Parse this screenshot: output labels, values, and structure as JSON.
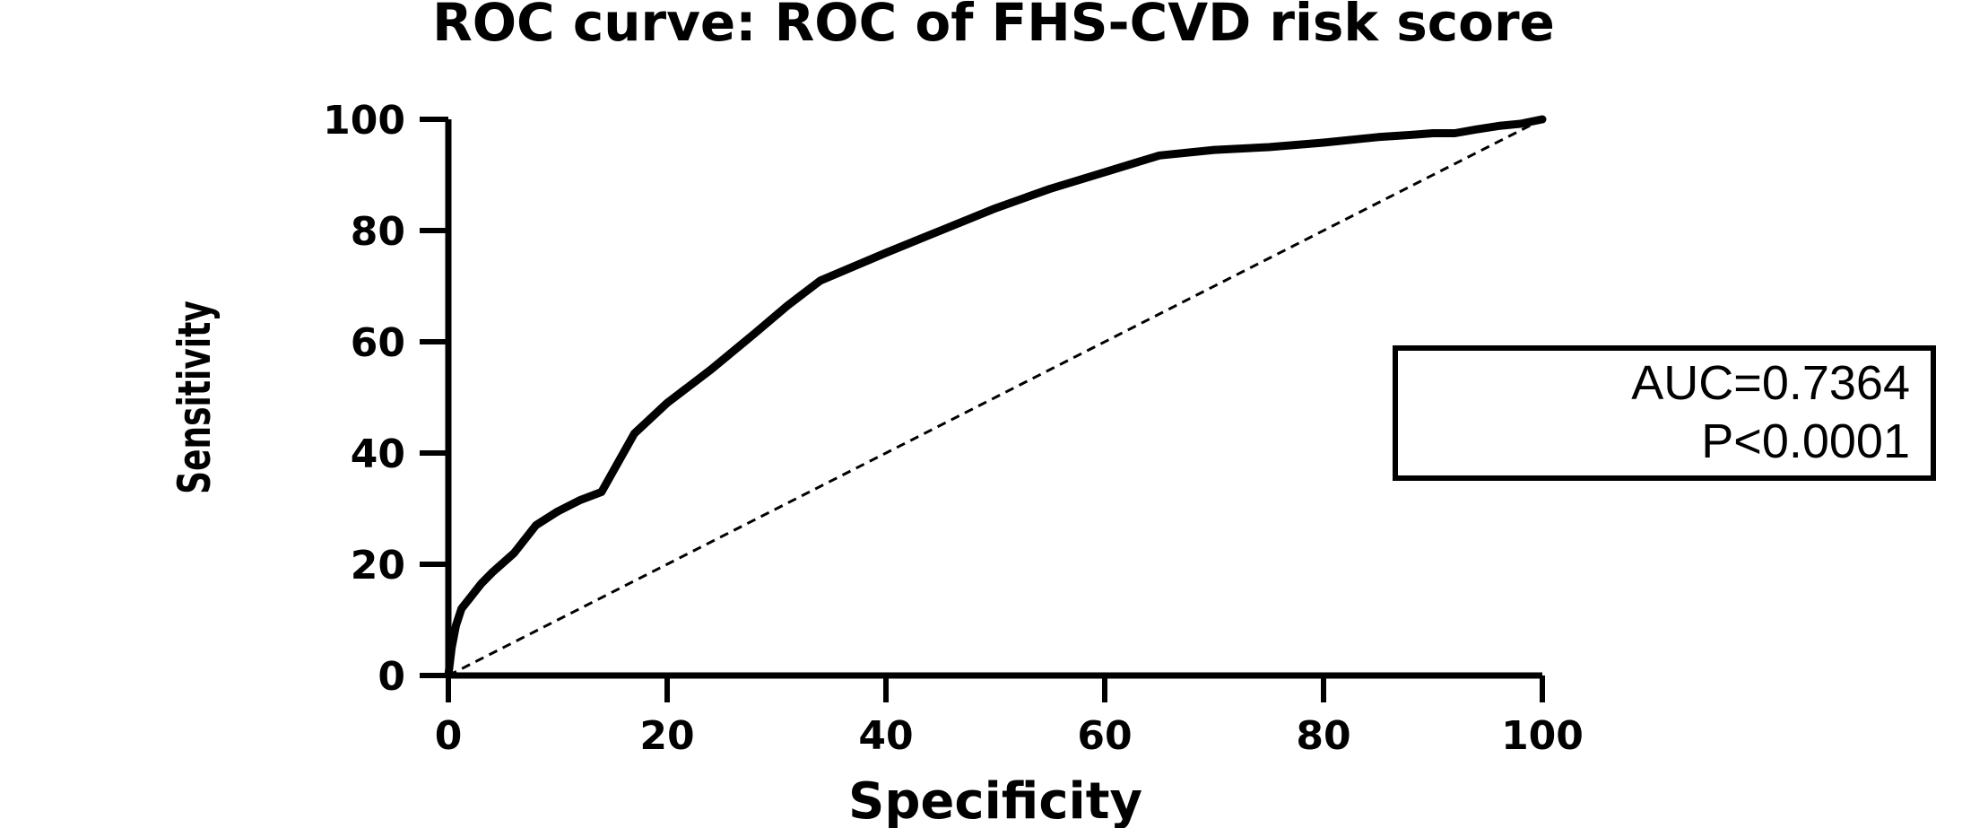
{
  "chart_data": {
    "type": "line",
    "title": "ROC curve: ROC of FHS-CVD risk score",
    "xlabel": "Specificity",
    "ylabel": "Sensitivity",
    "xlim": [
      0,
      100
    ],
    "ylim": [
      0,
      100
    ],
    "x_ticks": [
      0,
      20,
      40,
      60,
      80,
      100
    ],
    "y_ticks": [
      0,
      20,
      40,
      60,
      80,
      100
    ],
    "grid": false,
    "legend": "none",
    "series": [
      {
        "style": "solid",
        "x": [
          0,
          0.3,
          0.7,
          1.2,
          2,
          3,
          4,
          6,
          8,
          10,
          12,
          14,
          17,
          20,
          24,
          28,
          31,
          34,
          40,
          45,
          50,
          55,
          60,
          65,
          70,
          75,
          80,
          85,
          88,
          90,
          92,
          94,
          96,
          98,
          100
        ],
        "y": [
          0,
          5,
          9,
          12,
          14,
          16.5,
          18.5,
          22,
          27,
          29.5,
          31.5,
          33,
          43.5,
          49,
          55,
          61.5,
          66.5,
          71,
          76,
          80,
          84,
          87.5,
          90.5,
          93.5,
          94.5,
          95,
          95.8,
          96.8,
          97.2,
          97.5,
          97.5,
          98.2,
          98.8,
          99.2,
          100
        ]
      },
      {
        "style": "dashed",
        "x": [
          0,
          100
        ],
        "y": [
          0,
          100
        ]
      }
    ],
    "annotation": {
      "lines": [
        "AUC=0.7364",
        "P<0.0001"
      ]
    }
  }
}
